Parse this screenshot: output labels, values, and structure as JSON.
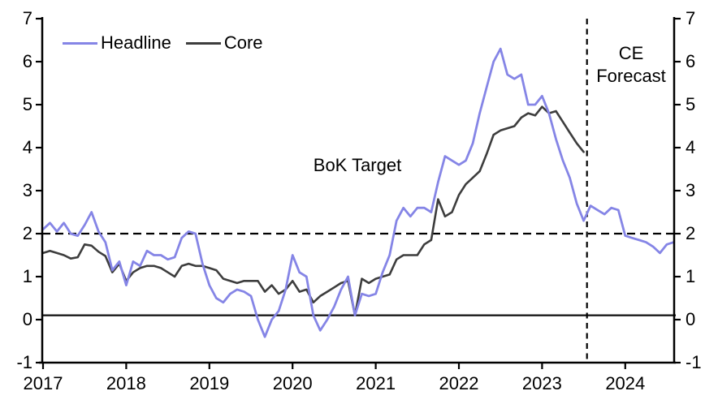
{
  "page": {
    "background": "#ffffff"
  },
  "legend": {
    "items": [
      {
        "label": "Headline",
        "color": "#8585e6"
      },
      {
        "label": "Core",
        "color": "#3d3d3d"
      }
    ]
  },
  "annotations": {
    "bok_target": "BoK Target",
    "ce_forecast_line1": "CE",
    "ce_forecast_line2": "Forecast"
  },
  "chart_data": {
    "type": "line",
    "title": "",
    "xlabel": "",
    "ylabel": "",
    "frequency": "monthly",
    "start_period": "2017-01",
    "x_axis": {
      "tick_labels": [
        "2017",
        "2018",
        "2019",
        "2020",
        "2021",
        "2022",
        "2023",
        "2024"
      ],
      "range_years": [
        2017.0,
        2024.6
      ]
    },
    "y_axis": {
      "ticks": [
        -1,
        0,
        1,
        2,
        3,
        4,
        5,
        6,
        7
      ],
      "range": [
        -1,
        7
      ],
      "label_sides": "both",
      "grid": false
    },
    "legend_position": "top-left",
    "series": [
      {
        "name": "Headline",
        "color": "#8585e6",
        "values": [
          2.1,
          2.25,
          2.05,
          2.25,
          2.0,
          1.95,
          2.2,
          2.5,
          2.05,
          1.8,
          1.15,
          1.35,
          0.8,
          1.35,
          1.25,
          1.6,
          1.5,
          1.5,
          1.4,
          1.45,
          1.9,
          2.05,
          2.0,
          1.3,
          0.8,
          0.5,
          0.4,
          0.6,
          0.7,
          0.65,
          0.55,
          0.0,
          -0.4,
          0.0,
          0.2,
          0.7,
          1.5,
          1.1,
          1.0,
          0.1,
          -0.25,
          0.0,
          0.3,
          0.7,
          1.0,
          0.1,
          0.6,
          0.55,
          0.6,
          1.1,
          1.5,
          2.3,
          2.6,
          2.4,
          2.6,
          2.6,
          2.5,
          3.2,
          3.8,
          3.7,
          3.6,
          3.7,
          4.1,
          4.8,
          5.4,
          6.0,
          6.3,
          5.7,
          5.6,
          5.7,
          5.0,
          5.0,
          5.2,
          4.8,
          4.2,
          3.7,
          3.3,
          2.7,
          2.3,
          2.65,
          2.55,
          2.45,
          2.6,
          2.55,
          1.95,
          1.9,
          1.85,
          1.8,
          1.7,
          1.55,
          1.75,
          1.8
        ]
      },
      {
        "name": "Core",
        "color": "#3d3d3d",
        "values": [
          1.55,
          1.6,
          1.55,
          1.5,
          1.42,
          1.45,
          1.75,
          1.72,
          1.58,
          1.48,
          1.1,
          1.3,
          0.9,
          1.1,
          1.2,
          1.25,
          1.25,
          1.2,
          1.1,
          1.0,
          1.25,
          1.3,
          1.25,
          1.25,
          1.2,
          1.15,
          0.95,
          0.9,
          0.85,
          0.9,
          0.9,
          0.9,
          0.65,
          0.8,
          0.6,
          0.7,
          0.9,
          0.65,
          0.7,
          0.4,
          0.55,
          0.65,
          0.75,
          0.85,
          0.9,
          0.1,
          0.95,
          0.85,
          0.95,
          1.0,
          1.05,
          1.4,
          1.5,
          1.5,
          1.5,
          1.75,
          1.85,
          2.8,
          2.4,
          2.5,
          2.9,
          3.15,
          3.3,
          3.45,
          3.85,
          4.3,
          4.4,
          4.45,
          4.5,
          4.7,
          4.8,
          4.75,
          4.95,
          4.8,
          4.85,
          4.6,
          4.35,
          4.1,
          3.9
        ]
      }
    ],
    "reference_lines": [
      {
        "type": "horizontal-dashed",
        "value": 2.0,
        "label": "BoK Target"
      },
      {
        "type": "horizontal-solid",
        "value": 0.1
      },
      {
        "type": "vertical-dashed",
        "x": 2023.54,
        "label": "CE Forecast"
      }
    ]
  }
}
